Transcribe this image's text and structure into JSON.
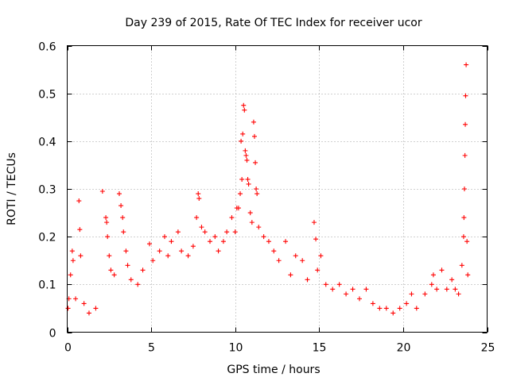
{
  "chart_data": {
    "type": "scatter",
    "title": "Day 239 of 2015, Rate Of TEC Index for receiver ucor",
    "xlabel": "GPS time / hours",
    "ylabel": "ROTI / TECUs",
    "xlim": [
      0,
      25
    ],
    "ylim": [
      0,
      0.6
    ],
    "xticks": [
      "0",
      "5",
      "10",
      "15",
      "20",
      "25"
    ],
    "yticks": [
      "0",
      "0.1",
      "0.2",
      "0.3",
      "0.4",
      "0.5",
      "0.6"
    ],
    "grid": true,
    "marker": "plus",
    "color": "#ff0000",
    "series": [
      {
        "values": [
          [
            0.05,
            0.05
          ],
          [
            0.1,
            0.07
          ],
          [
            0.2,
            0.12
          ],
          [
            0.3,
            0.17
          ],
          [
            0.35,
            0.15
          ],
          [
            0.5,
            0.07
          ],
          [
            0.7,
            0.275
          ],
          [
            0.75,
            0.215
          ],
          [
            0.8,
            0.16
          ],
          [
            1.0,
            0.06
          ],
          [
            1.3,
            0.04
          ],
          [
            1.7,
            0.05
          ],
          [
            2.1,
            0.295
          ],
          [
            2.3,
            0.24
          ],
          [
            2.35,
            0.23
          ],
          [
            2.4,
            0.2
          ],
          [
            2.5,
            0.16
          ],
          [
            2.6,
            0.13
          ],
          [
            2.8,
            0.12
          ],
          [
            3.1,
            0.29
          ],
          [
            3.2,
            0.265
          ],
          [
            3.3,
            0.24
          ],
          [
            3.35,
            0.21
          ],
          [
            3.5,
            0.17
          ],
          [
            3.6,
            0.14
          ],
          [
            3.8,
            0.11
          ],
          [
            4.2,
            0.1
          ],
          [
            4.5,
            0.13
          ],
          [
            4.9,
            0.185
          ],
          [
            5.1,
            0.15
          ],
          [
            5.5,
            0.17
          ],
          [
            5.8,
            0.2
          ],
          [
            6.0,
            0.16
          ],
          [
            6.2,
            0.19
          ],
          [
            6.6,
            0.21
          ],
          [
            6.8,
            0.17
          ],
          [
            7.2,
            0.16
          ],
          [
            7.5,
            0.18
          ],
          [
            7.7,
            0.24
          ],
          [
            7.8,
            0.29
          ],
          [
            7.85,
            0.28
          ],
          [
            8.0,
            0.22
          ],
          [
            8.2,
            0.21
          ],
          [
            8.5,
            0.19
          ],
          [
            8.8,
            0.2
          ],
          [
            9.0,
            0.17
          ],
          [
            9.3,
            0.19
          ],
          [
            9.5,
            0.21
          ],
          [
            9.8,
            0.24
          ],
          [
            10.0,
            0.21
          ],
          [
            10.1,
            0.26
          ],
          [
            10.2,
            0.26
          ],
          [
            10.3,
            0.29
          ],
          [
            10.35,
            0.4
          ],
          [
            10.4,
            0.32
          ],
          [
            10.45,
            0.415
          ],
          [
            10.5,
            0.475
          ],
          [
            10.55,
            0.465
          ],
          [
            10.6,
            0.38
          ],
          [
            10.65,
            0.37
          ],
          [
            10.7,
            0.36
          ],
          [
            10.75,
            0.32
          ],
          [
            10.8,
            0.31
          ],
          [
            10.9,
            0.25
          ],
          [
            11.0,
            0.23
          ],
          [
            11.1,
            0.44
          ],
          [
            11.15,
            0.41
          ],
          [
            11.2,
            0.355
          ],
          [
            11.25,
            0.3
          ],
          [
            11.3,
            0.29
          ],
          [
            11.4,
            0.22
          ],
          [
            11.7,
            0.2
          ],
          [
            12.0,
            0.19
          ],
          [
            12.3,
            0.17
          ],
          [
            12.6,
            0.15
          ],
          [
            13.0,
            0.19
          ],
          [
            13.3,
            0.12
          ],
          [
            13.6,
            0.16
          ],
          [
            14.0,
            0.15
          ],
          [
            14.3,
            0.11
          ],
          [
            14.7,
            0.23
          ],
          [
            14.8,
            0.195
          ],
          [
            14.9,
            0.13
          ],
          [
            15.1,
            0.16
          ],
          [
            15.4,
            0.1
          ],
          [
            15.8,
            0.09
          ],
          [
            16.2,
            0.1
          ],
          [
            16.6,
            0.08
          ],
          [
            17.0,
            0.09
          ],
          [
            17.4,
            0.07
          ],
          [
            17.8,
            0.09
          ],
          [
            18.2,
            0.06
          ],
          [
            18.6,
            0.05
          ],
          [
            19.0,
            0.05
          ],
          [
            19.4,
            0.04
          ],
          [
            19.8,
            0.05
          ],
          [
            20.2,
            0.06
          ],
          [
            20.5,
            0.08
          ],
          [
            20.8,
            0.05
          ],
          [
            21.3,
            0.08
          ],
          [
            21.7,
            0.1
          ],
          [
            21.8,
            0.12
          ],
          [
            22.0,
            0.09
          ],
          [
            22.3,
            0.13
          ],
          [
            22.6,
            0.09
          ],
          [
            22.9,
            0.11
          ],
          [
            23.1,
            0.09
          ],
          [
            23.3,
            0.08
          ],
          [
            23.5,
            0.14
          ],
          [
            23.6,
            0.2
          ],
          [
            23.62,
            0.24
          ],
          [
            23.65,
            0.3
          ],
          [
            23.68,
            0.37
          ],
          [
            23.7,
            0.435
          ],
          [
            23.72,
            0.495
          ],
          [
            23.75,
            0.56
          ],
          [
            23.8,
            0.19
          ],
          [
            23.85,
            0.12
          ]
        ]
      }
    ]
  }
}
